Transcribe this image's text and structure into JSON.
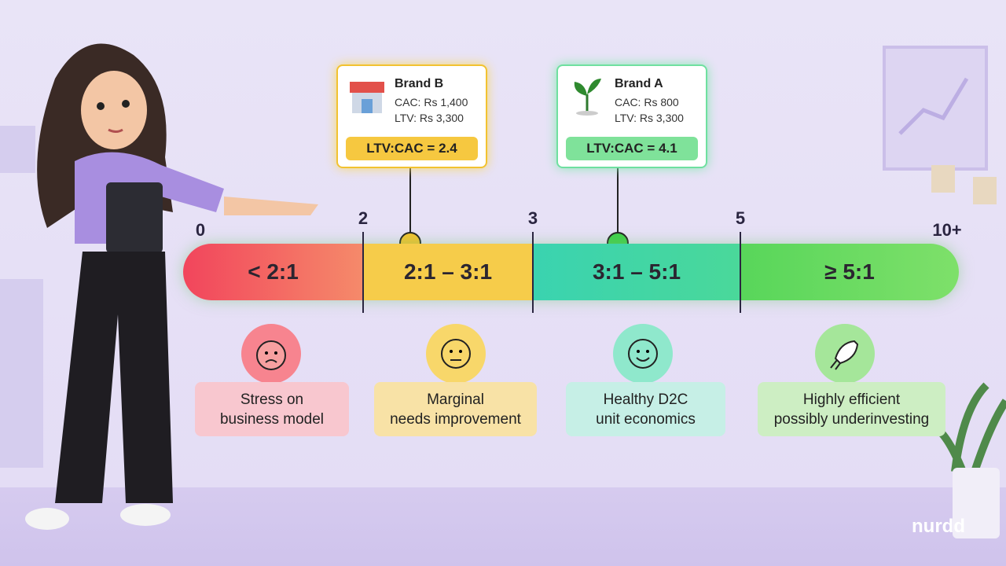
{
  "scale": {
    "ticks": [
      "0",
      "2",
      "3",
      "5",
      "10+"
    ],
    "segments": [
      {
        "label": "< 2:1",
        "description": [
          "Stress on",
          "business model"
        ]
      },
      {
        "label": "2:1 – 3:1",
        "description": [
          "Marginal",
          "needs improvement"
        ]
      },
      {
        "label": "3:1 – 5:1",
        "description": [
          "Healthy D2C",
          "unit economics"
        ]
      },
      {
        "label": "≥ 5:1",
        "description": [
          "Highly efficient",
          "possibly underinvesting"
        ]
      }
    ]
  },
  "brands": [
    {
      "name": "Brand B",
      "cac": "CAC: Rs 1,400",
      "ltv": "LTV: Rs 3,300",
      "ratio": "LTV:CAC = 2.4"
    },
    {
      "name": "Brand A",
      "cac": "CAC: Rs 800",
      "ltv": "LTV: Rs 3,300",
      "ratio": "LTV:CAC = 4.1"
    }
  ],
  "logo": "nurdd"
}
